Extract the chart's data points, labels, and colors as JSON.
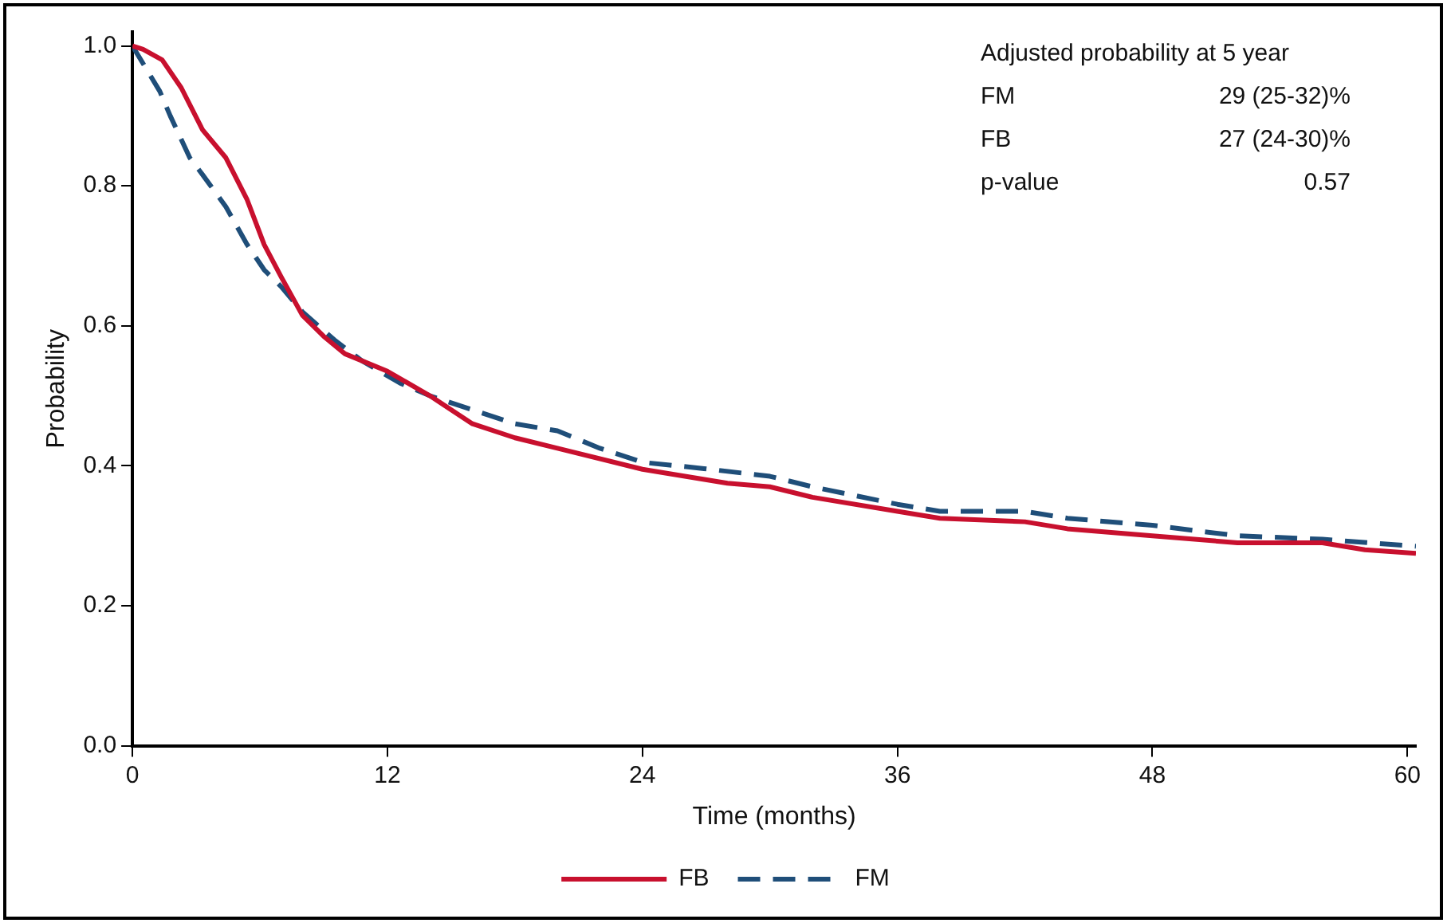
{
  "chart_data": {
    "type": "line",
    "xlabel": "Time (months)",
    "ylabel": "Probability",
    "xlim": [
      0,
      60.4
    ],
    "xticks": [
      0,
      12,
      24,
      36,
      48,
      60
    ],
    "ylim": [
      0,
      1.02
    ],
    "yticks": [
      {
        "value": 0,
        "label": "0.0"
      },
      {
        "value": 0.2,
        "label": "0.2"
      },
      {
        "value": 0.4,
        "label": "0.4"
      },
      {
        "value": 0.6,
        "label": "0.6"
      },
      {
        "value": 0.8,
        "label": "0.8"
      },
      {
        "value": 1,
        "label": "1.0"
      }
    ],
    "grid": false,
    "legend": "bottom",
    "marker": "none",
    "annotations": [
      "Adjusted probability at 5 year",
      "FM",
      "29 (25-32)%",
      "FB",
      "27 (24-30)%",
      "p-value",
      "0.57"
    ],
    "series": [
      {
        "name": "FB",
        "color": "#c8102e",
        "line_style": "solid",
        "x": [
          0,
          0.5,
          1.4,
          2.3,
          3.3,
          4.4,
          5.4,
          6.2,
          7,
          8,
          9,
          10,
          12,
          14,
          16,
          18,
          20,
          24,
          28,
          30,
          32,
          36,
          38,
          42,
          44,
          48,
          52,
          56,
          58,
          60.4
        ],
        "values": [
          1,
          0.995,
          0.98,
          0.94,
          0.88,
          0.84,
          0.78,
          0.716,
          0.67,
          0.615,
          0.585,
          0.56,
          0.535,
          0.5,
          0.46,
          0.44,
          0.425,
          0.395,
          0.375,
          0.37,
          0.355,
          0.335,
          0.325,
          0.32,
          0.31,
          0.3,
          0.29,
          0.29,
          0.28,
          0.275
        ]
      },
      {
        "name": "FM",
        "color": "#1f4e79",
        "line_style": "dashed",
        "x": [
          0,
          1.29,
          1.78,
          2.7,
          3.3,
          4.4,
          5.4,
          6.2,
          7,
          8,
          9.5,
          10.8,
          12.6,
          14,
          16,
          18,
          20,
          22,
          24,
          26.9,
          30,
          32,
          36,
          38,
          42,
          44,
          48,
          52,
          56,
          60.4
        ],
        "values": [
          1,
          0.935,
          0.9,
          0.84,
          0.816,
          0.77,
          0.716,
          0.68,
          0.656,
          0.62,
          0.58,
          0.55,
          0.518,
          0.5,
          0.48,
          0.46,
          0.45,
          0.425,
          0.405,
          0.396,
          0.385,
          0.37,
          0.345,
          0.335,
          0.335,
          0.325,
          0.315,
          0.3,
          0.295,
          0.285
        ]
      }
    ]
  }
}
